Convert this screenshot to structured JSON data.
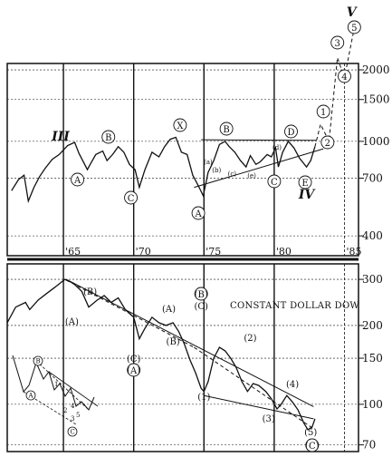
{
  "chart_data": [
    {
      "type": "line",
      "title": "",
      "xlabel": "",
      "ylabel": "",
      "scale": "log",
      "x_ticks": [
        "'65",
        "'70",
        "'75",
        "'80",
        "'85"
      ],
      "x_tick_values": [
        1965,
        1970,
        1975,
        1980,
        1985
      ],
      "y_ticks": [
        "2000",
        "1500",
        "1000",
        "700",
        "400"
      ],
      "y_tick_values": [
        2000,
        1500,
        1000,
        700,
        400
      ],
      "xlim": [
        1961,
        1986
      ],
      "ylim": [
        330,
        3800
      ],
      "series": [
        {
          "x": [
            1961.3,
            1961.8,
            1962.2,
            1962.5,
            1962.9,
            1963.3,
            1963.7,
            1964.2,
            1964.7,
            1965.3,
            1965.8,
            1966.1,
            1966.7,
            1966.9,
            1967.3,
            1967.8,
            1968.1,
            1968.5,
            1968.9,
            1969.3,
            1969.7,
            1970.1,
            1970.4,
            1970.8,
            1971.3,
            1971.8,
            1972.2,
            1972.6,
            1973.0,
            1973.4,
            1973.8,
            1974.2,
            1974.6,
            1974.95,
            1975.3,
            1975.7,
            1976.1,
            1976.5,
            1976.8,
            1977.2,
            1977.6,
            1978.0,
            1978.3,
            1978.7,
            1979.0,
            1979.5,
            1979.8,
            1980.1,
            1980.3,
            1980.6,
            1981.0,
            1981.4,
            1981.8,
            1982.3,
            1982.6,
            1982.9
          ],
          "values": [
            620,
            690,
            720,
            560,
            640,
            710,
            770,
            840,
            880,
            960,
            990,
            890,
            760,
            800,
            880,
            910,
            830,
            880,
            950,
            900,
            800,
            760,
            640,
            760,
            900,
            860,
            950,
            1020,
            1040,
            900,
            880,
            720,
            650,
            590,
            740,
            830,
            970,
            1000,
            950,
            900,
            830,
            780,
            870,
            800,
            820,
            880,
            860,
            940,
            780,
            900,
            1000,
            940,
            850,
            780,
            830,
            950
          ]
        }
      ],
      "annotations": [
        "III",
        "A",
        "B",
        "C",
        "X",
        "A",
        "B",
        "C",
        "D",
        "E",
        "IV",
        "1",
        "2",
        "3",
        "4",
        "5",
        "V",
        "(a)",
        "(b)",
        "(c)",
        "(d)",
        "(e)"
      ],
      "grid": true
    },
    {
      "type": "line",
      "title": "CONSTANT DOLLAR DOW",
      "xlabel": "",
      "ylabel": "",
      "scale": "log",
      "y_ticks": [
        "300",
        "200",
        "150",
        "100",
        "70"
      ],
      "y_tick_values": [
        300,
        200,
        150,
        100,
        70
      ],
      "xlim": [
        1961,
        1986
      ],
      "ylim": [
        66,
        320
      ],
      "series": [
        {
          "x": [
            1961.0,
            1961.6,
            1962.3,
            1962.6,
            1963.2,
            1963.8,
            1964.4,
            1965.1,
            1965.7,
            1966.3,
            1966.8,
            1967.4,
            1967.9,
            1968.4,
            1968.9,
            1969.4,
            1970.0,
            1970.4,
            1970.8,
            1971.3,
            1971.8,
            1972.3,
            1972.8,
            1973.2,
            1973.6,
            1974.0,
            1974.4,
            1974.8,
            1975.0,
            1975.3,
            1975.7,
            1976.1,
            1976.5,
            1976.9,
            1977.3,
            1977.7,
            1978.1,
            1978.5,
            1978.9,
            1979.4,
            1979.8,
            1980.2,
            1980.5,
            1980.9,
            1981.3,
            1981.7,
            1982.1,
            1982.4,
            1982.7,
            1982.9
          ],
          "values": [
            205,
            235,
            245,
            230,
            250,
            265,
            280,
            300,
            290,
            270,
            235,
            250,
            260,
            245,
            255,
            230,
            215,
            178,
            195,
            215,
            205,
            200,
            205,
            190,
            170,
            148,
            132,
            115,
            112,
            122,
            150,
            165,
            160,
            150,
            138,
            122,
            112,
            120,
            118,
            112,
            105,
            96,
            100,
            108,
            102,
            95,
            85,
            80,
            82,
            88
          ]
        }
      ],
      "annotations": [
        "(B)",
        "(B)",
        "(C)",
        "(A)",
        "(A)",
        "(C)",
        "(A)",
        "(B)",
        "(1)",
        "(2)",
        "(3)",
        "(4)",
        "(5)",
        "(C)"
      ],
      "inset_labels": [
        "B",
        "A",
        "C",
        "1",
        "2",
        "3",
        "4",
        "5"
      ],
      "grid": true
    }
  ]
}
